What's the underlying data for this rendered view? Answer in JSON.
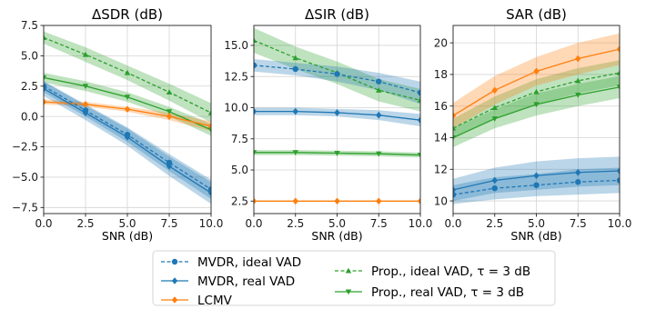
{
  "chart_data": [
    {
      "type": "line",
      "title": "ΔSDR (dB)",
      "xlabel": "SNR (dB)",
      "ylabel": "",
      "x": [
        0,
        2.5,
        5,
        7.5,
        10
      ],
      "xlim": [
        0,
        10
      ],
      "ylim": [
        -8,
        7.5
      ],
      "xticks": [
        "0.0",
        "2.5",
        "5.0",
        "7.5",
        "10.0"
      ],
      "yticks": [
        -7.5,
        -5.0,
        -2.5,
        0.0,
        2.5,
        5.0,
        7.5
      ],
      "ytick_labels": [
        "−7.5",
        "−5.0",
        "−2.5",
        "0.0",
        "2.5",
        "5.0",
        "7.5"
      ],
      "grid": true,
      "series": [
        {
          "key": "mvdr_ideal",
          "values": [
            2.5,
            0.5,
            -1.5,
            -3.8,
            -6.0
          ],
          "band": [
            [
              2.0,
              2.9
            ],
            [
              0.0,
              1.0
            ],
            [
              -2.1,
              -0.9
            ],
            [
              -4.5,
              -3.1
            ],
            [
              -6.8,
              -5.2
            ]
          ]
        },
        {
          "key": "mvdr_real",
          "values": [
            2.3,
            0.3,
            -1.7,
            -4.1,
            -6.3
          ],
          "band": [
            [
              1.7,
              2.9
            ],
            [
              -0.3,
              0.9
            ],
            [
              -2.4,
              -1.0
            ],
            [
              -4.9,
              -3.3
            ],
            [
              -7.2,
              -5.4
            ]
          ]
        },
        {
          "key": "lcmv",
          "values": [
            1.2,
            1.0,
            0.6,
            0.0,
            -0.8
          ],
          "band": [
            [
              1.0,
              1.4
            ],
            [
              0.8,
              1.2
            ],
            [
              0.4,
              0.8
            ],
            [
              -0.3,
              0.3
            ],
            [
              -1.2,
              -0.4
            ]
          ]
        },
        {
          "key": "prop_ideal",
          "values": [
            6.5,
            5.1,
            3.6,
            2.0,
            0.3
          ],
          "band": [
            [
              6.0,
              7.0
            ],
            [
              4.5,
              5.7
            ],
            [
              3.0,
              4.2
            ],
            [
              1.3,
              2.7
            ],
            [
              -0.5,
              1.1
            ]
          ]
        },
        {
          "key": "prop_real",
          "values": [
            3.2,
            2.5,
            1.6,
            0.4,
            -1.1
          ],
          "band": [
            [
              2.8,
              3.6
            ],
            [
              2.1,
              2.9
            ],
            [
              1.2,
              2.0
            ],
            [
              0.0,
              0.8
            ],
            [
              -1.6,
              -0.6
            ]
          ]
        }
      ]
    },
    {
      "type": "line",
      "title": "ΔSIR (dB)",
      "xlabel": "SNR (dB)",
      "ylabel": "",
      "x": [
        0,
        2.5,
        5,
        7.5,
        10
      ],
      "xlim": [
        0,
        10
      ],
      "ylim": [
        1.5,
        16.6
      ],
      "xticks": [
        "0.0",
        "2.5",
        "5.0",
        "7.5",
        "10.0"
      ],
      "yticks": [
        2.5,
        5.0,
        7.5,
        10.0,
        12.5,
        15.0
      ],
      "ytick_labels": [
        "2.5",
        "5.0",
        "7.5",
        "10.0",
        "12.5",
        "15.0"
      ],
      "grid": true,
      "series": [
        {
          "key": "mvdr_ideal",
          "values": [
            13.4,
            13.1,
            12.7,
            12.1,
            11.2
          ],
          "band": [
            [
              12.9,
              13.9
            ],
            [
              12.6,
              13.6
            ],
            [
              12.1,
              13.3
            ],
            [
              11.4,
              12.8
            ],
            [
              10.3,
              12.1
            ]
          ]
        },
        {
          "key": "mvdr_real",
          "values": [
            9.7,
            9.7,
            9.6,
            9.4,
            9.0
          ],
          "band": [
            [
              9.4,
              10.0
            ],
            [
              9.4,
              10.0
            ],
            [
              9.3,
              9.9
            ],
            [
              9.0,
              9.8
            ],
            [
              8.5,
              9.5
            ]
          ]
        },
        {
          "key": "lcmv",
          "values": [
            2.5,
            2.5,
            2.5,
            2.5,
            2.5
          ],
          "band": [
            [
              2.45,
              2.55
            ],
            [
              2.45,
              2.55
            ],
            [
              2.45,
              2.55
            ],
            [
              2.45,
              2.55
            ],
            [
              2.45,
              2.55
            ]
          ]
        },
        {
          "key": "prop_ideal",
          "values": [
            15.4,
            14.0,
            12.8,
            11.4,
            10.6
          ],
          "band": [
            [
              14.4,
              16.4
            ],
            [
              13.1,
              14.9
            ],
            [
              11.9,
              13.7
            ],
            [
              10.5,
              12.3
            ],
            [
              9.7,
              11.5
            ]
          ]
        },
        {
          "key": "prop_real",
          "values": [
            6.4,
            6.4,
            6.35,
            6.3,
            6.2
          ],
          "band": [
            [
              6.2,
              6.6
            ],
            [
              6.2,
              6.6
            ],
            [
              6.15,
              6.55
            ],
            [
              6.1,
              6.5
            ],
            [
              6.0,
              6.4
            ]
          ]
        }
      ]
    },
    {
      "type": "line",
      "title": "SAR (dB)",
      "xlabel": "SNR (dB)",
      "ylabel": "",
      "x": [
        0,
        2.5,
        5,
        7.5,
        10
      ],
      "xlim": [
        0,
        10
      ],
      "ylim": [
        9.2,
        21.1
      ],
      "xticks": [
        "0.0",
        "2.5",
        "5.0",
        "7.5",
        "10.0"
      ],
      "yticks": [
        10,
        12,
        14,
        16,
        18,
        20
      ],
      "ytick_labels": [
        "10",
        "12",
        "14",
        "16",
        "18",
        "20"
      ],
      "grid": true,
      "series": [
        {
          "key": "mvdr_ideal",
          "values": [
            10.4,
            10.8,
            11.0,
            11.2,
            11.3
          ],
          "band": [
            [
              9.8,
              11.0
            ],
            [
              10.1,
              11.5
            ],
            [
              10.3,
              11.7
            ],
            [
              10.4,
              12.0
            ],
            [
              10.5,
              12.1
            ]
          ]
        },
        {
          "key": "mvdr_real",
          "values": [
            10.7,
            11.3,
            11.6,
            11.8,
            11.9
          ],
          "band": [
            [
              10.0,
              11.4
            ],
            [
              10.5,
              12.1
            ],
            [
              10.7,
              12.5
            ],
            [
              10.9,
              12.7
            ],
            [
              11.0,
              12.8
            ]
          ]
        },
        {
          "key": "lcmv",
          "values": [
            15.4,
            17.0,
            18.2,
            19.0,
            19.6
          ],
          "band": [
            [
              14.6,
              16.2
            ],
            [
              16.1,
              17.9
            ],
            [
              17.3,
              19.1
            ],
            [
              18.0,
              20.0
            ],
            [
              18.6,
              20.6
            ]
          ]
        },
        {
          "key": "prop_ideal",
          "values": [
            14.6,
            15.9,
            16.9,
            17.6,
            18.1
          ],
          "band": [
            [
              14.0,
              15.2
            ],
            [
              15.2,
              16.6
            ],
            [
              16.1,
              17.7
            ],
            [
              16.8,
              18.4
            ],
            [
              17.3,
              18.9
            ]
          ]
        },
        {
          "key": "prop_real",
          "values": [
            14.0,
            15.2,
            16.1,
            16.7,
            17.2
          ],
          "band": [
            [
              13.4,
              14.6
            ],
            [
              14.6,
              15.8
            ],
            [
              15.4,
              16.8
            ],
            [
              16.0,
              17.4
            ],
            [
              16.5,
              17.9
            ]
          ]
        }
      ]
    }
  ],
  "series_styles": {
    "mvdr_ideal": {
      "color": "#1f77b4",
      "dash": "dashed",
      "marker": "circle"
    },
    "mvdr_real": {
      "color": "#1f77b4",
      "dash": "solid",
      "marker": "diamond"
    },
    "lcmv": {
      "color": "#ff7f0e",
      "dash": "solid",
      "marker": "diamond"
    },
    "prop_ideal": {
      "color": "#2ca02c",
      "dash": "dashed",
      "marker": "triangle"
    },
    "prop_real": {
      "color": "#2ca02c",
      "dash": "solid",
      "marker": "triangle-down"
    }
  },
  "legend": {
    "placement": "bottom",
    "entries": [
      {
        "key": "mvdr_ideal",
        "label": "MVDR, ideal VAD"
      },
      {
        "key": "mvdr_real",
        "label": "MVDR, real VAD"
      },
      {
        "key": "lcmv",
        "label": "LCMV"
      },
      {
        "key": "prop_ideal",
        "label": "Prop., ideal VAD, τ = 3 dB"
      },
      {
        "key": "prop_real",
        "label": "Prop., real VAD, τ = 3 dB"
      }
    ]
  }
}
